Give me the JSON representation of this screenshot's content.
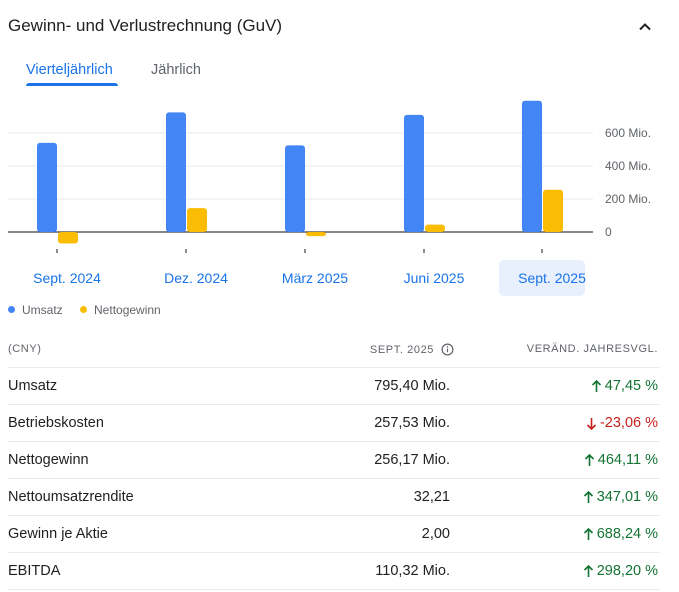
{
  "header": {
    "title": "Gewinn- und Verlustrechnung (GuV)",
    "collapse_icon": "chevron-up-icon"
  },
  "tabs": [
    {
      "label": "Vierteljährlich",
      "active": true
    },
    {
      "label": "Jährlich",
      "active": false
    }
  ],
  "chart_data": {
    "type": "bar",
    "categories": [
      "Sept. 2024",
      "Dez. 2024",
      "März 2025",
      "Juni 2025",
      "Sept. 2025"
    ],
    "selected_category": "Sept. 2025",
    "series": [
      {
        "name": "Umsatz",
        "color": "#4285f4",
        "values": [
          540,
          725,
          525,
          710,
          795.4
        ]
      },
      {
        "name": "Nettogewinn",
        "color": "#fbbc04",
        "values": [
          -70,
          145,
          -25,
          45,
          256.17
        ]
      }
    ],
    "y_ticks": [
      "600 Mio.",
      "400 Mio.",
      "200 Mio.",
      "0"
    ],
    "y_tick_values": [
      600,
      400,
      200,
      0
    ],
    "ylim": [
      -90,
      800
    ],
    "grid": true,
    "legend_position": "bottom-left"
  },
  "legend": [
    {
      "label": "Umsatz",
      "color": "#4285f4"
    },
    {
      "label": "Nettogewinn",
      "color": "#fbbc04"
    }
  ],
  "table": {
    "headers": {
      "metric": "(CNY)",
      "period": "SEPT. 2025",
      "change": "VERÄND. JAHRESVGL."
    },
    "rows": [
      {
        "label": "Umsatz",
        "value": "795,40 Mio.",
        "change": "47,45 %",
        "direction": "up"
      },
      {
        "label": "Betriebskosten",
        "value": "257,53 Mio.",
        "change": "-23,06 %",
        "direction": "down"
      },
      {
        "label": "Nettogewinn",
        "value": "256,17 Mio.",
        "change": "464,11 %",
        "direction": "up"
      },
      {
        "label": "Nettoumsatzrendite",
        "value": "32,21",
        "change": "347,01 %",
        "direction": "up"
      },
      {
        "label": "Gewinn je Aktie",
        "value": "2,00",
        "change": "688,24 %",
        "direction": "up"
      },
      {
        "label": "EBITDA",
        "value": "110,32 Mio.",
        "change": "298,20 %",
        "direction": "up"
      }
    ]
  }
}
